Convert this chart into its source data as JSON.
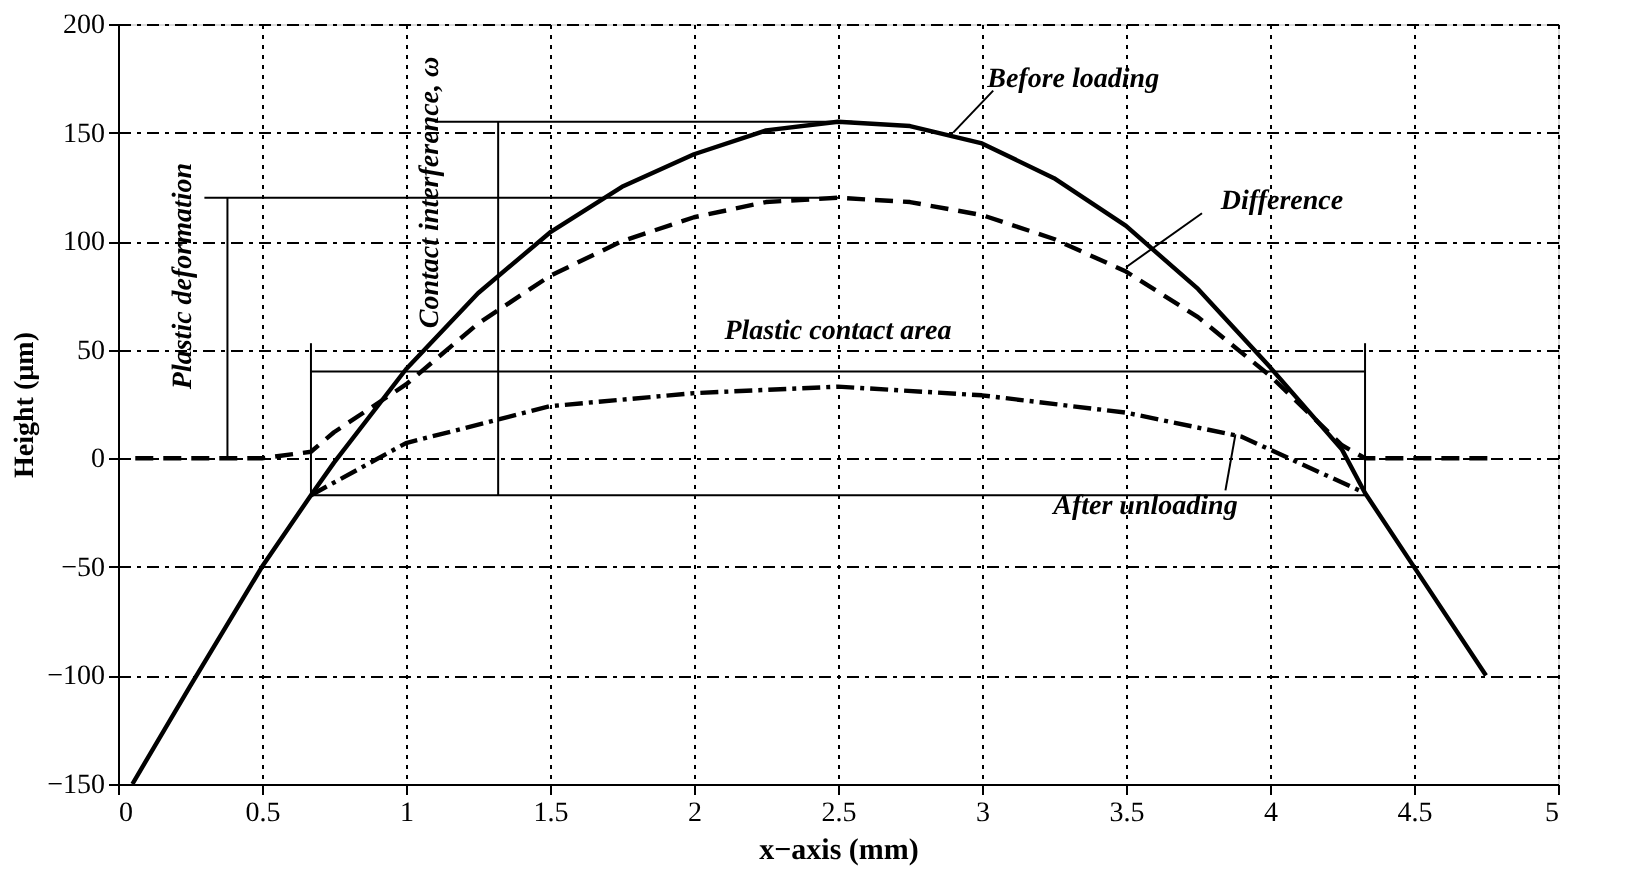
{
  "chart_data": {
    "type": "line",
    "xlabel": "x−axis (mm)",
    "ylabel": "Height (µm)",
    "xlim": [
      0,
      5
    ],
    "ylim": [
      -150,
      200
    ],
    "xticks": [
      0,
      0.5,
      1,
      1.5,
      2,
      2.5,
      3,
      3.5,
      4,
      4.5,
      5
    ],
    "yticks": [
      -150,
      -100,
      -50,
      0,
      50,
      100,
      150,
      200
    ],
    "grid": true,
    "marker": "none",
    "series": [
      {
        "color": "#000000",
        "line_style": "solid",
        "x": [
          0.05,
          0.25,
          0.5,
          0.67,
          0.75,
          1.0,
          1.25,
          1.5,
          1.75,
          2.0,
          2.25,
          2.5,
          2.75,
          3.0,
          3.25,
          3.5,
          3.75,
          4.0,
          4.25,
          4.33,
          4.5,
          4.75
        ],
        "values": [
          -150,
          -105,
          -50,
          -17,
          -2,
          41,
          76,
          104,
          125,
          140,
          151,
          155,
          153,
          145,
          129,
          107,
          78,
          42,
          4,
          -16,
          -50,
          -100
        ]
      },
      {
        "color": "#000000",
        "line_style": "dashed",
        "x": [
          0.06,
          0.5,
          0.67,
          0.75,
          1.0,
          1.25,
          1.5,
          1.75,
          2.0,
          2.25,
          2.5,
          2.75,
          3.0,
          3.25,
          3.5,
          3.75,
          4.0,
          4.25,
          4.33,
          4.5,
          4.77
        ],
        "values": [
          0,
          0,
          3,
          12,
          34,
          62,
          84,
          100,
          111,
          118,
          120,
          118,
          112,
          101,
          86,
          65,
          38,
          6,
          0,
          0,
          0
        ]
      },
      {
        "color": "#000000",
        "line_style": "dashdot",
        "x": [
          0.67,
          1.0,
          1.5,
          2.0,
          2.5,
          3.0,
          3.5,
          3.9,
          4.0,
          4.33
        ],
        "values": [
          -17,
          7,
          24,
          30,
          33,
          29,
          21,
          10,
          4,
          -16
        ]
      },
      {
        "color": "#000000",
        "line_style": "solid",
        "x": [
          1.1,
          2.55
        ],
        "values": [
          155,
          155
        ]
      },
      {
        "color": "#000000",
        "line_style": "solid",
        "x": [
          0.3,
          2.5
        ],
        "values": [
          120,
          120
        ]
      },
      {
        "color": "#000000",
        "line_style": "solid",
        "x": [
          0.67,
          4.33
        ],
        "values": [
          -17,
          -17
        ]
      },
      {
        "color": "#000000",
        "line_style": "solid",
        "x": [
          0.38,
          0.38
        ],
        "values": [
          0,
          120
        ]
      },
      {
        "color": "#000000",
        "line_style": "solid",
        "x": [
          1.32,
          1.32
        ],
        "values": [
          -17,
          155
        ]
      },
      {
        "color": "#000000",
        "line_style": "solid",
        "x": [
          0.67,
          4.33
        ],
        "values": [
          40,
          40
        ]
      },
      {
        "color": "#000000",
        "line_style": "solid",
        "x": [
          0.67,
          0.67
        ],
        "values": [
          -17,
          53
        ]
      },
      {
        "color": "#000000",
        "line_style": "solid",
        "x": [
          4.33,
          4.33
        ],
        "values": [
          -17,
          53
        ]
      }
    ],
    "annotations": [
      {
        "text": "Before loading",
        "x": 2.9,
        "y": 150
      },
      {
        "text": "Difference",
        "x": 3.5,
        "y": 88
      },
      {
        "text": "After unloading",
        "x": 3.88,
        "y": 11
      },
      {
        "text": "Plastic contact area",
        "x": 2.5,
        "y": 40
      },
      {
        "text": "Plastic deformation",
        "x": 0.38,
        "y": 60
      },
      {
        "text": "Contact interference, ω",
        "x": 1.32,
        "y": 69
      }
    ]
  }
}
